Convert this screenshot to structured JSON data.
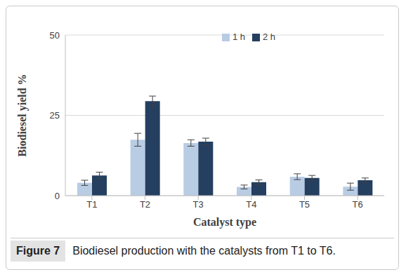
{
  "chart_data": {
    "type": "bar",
    "title": "Figure 7",
    "subtitle": "Biodiesel production with the catalysts from T1 to T6.",
    "x_label": "Catalyst type",
    "y_label": "Biodiesel yield %",
    "categories": [
      "T1",
      "T2",
      "T3",
      "T4",
      "T5",
      "T6"
    ],
    "series": [
      {
        "name": "1 h",
        "color": "#b8cce4",
        "values": [
          4.0,
          17.4,
          16.4,
          2.7,
          5.9,
          2.8
        ],
        "errors": [
          0.8,
          2.0,
          1.0,
          0.6,
          0.9,
          1.1
        ]
      },
      {
        "name": "2 h",
        "color": "#243f60",
        "values": [
          6.3,
          29.4,
          16.8,
          4.2,
          5.5,
          4.8
        ],
        "errors": [
          1.0,
          1.6,
          1.1,
          0.7,
          0.8,
          0.7
        ]
      }
    ],
    "ylim": [
      0,
      50
    ],
    "yticks": [
      0,
      25,
      50
    ],
    "grid": true,
    "legend": "top"
  }
}
